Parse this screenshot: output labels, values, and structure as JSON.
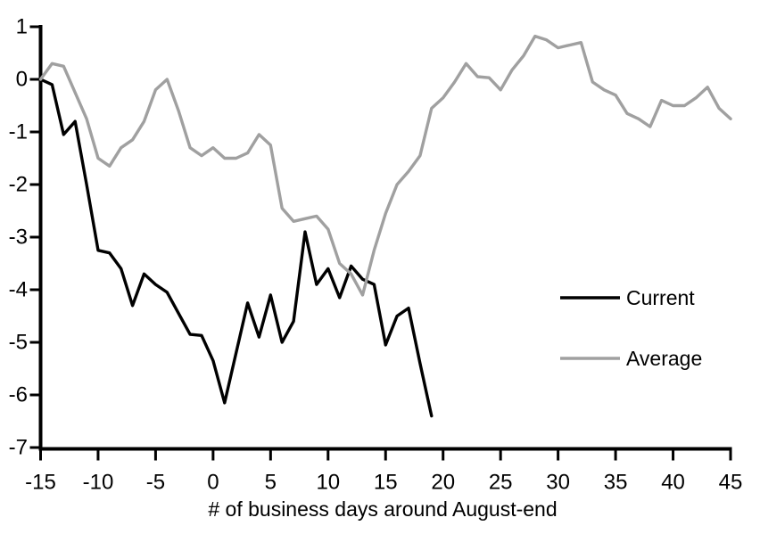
{
  "chart_data": {
    "type": "line",
    "title": "",
    "xlabel": "# of business days around August-end",
    "ylabel": "",
    "xlim": [
      -15,
      45
    ],
    "ylim": [
      -7,
      1
    ],
    "x_ticks": [
      -15,
      -10,
      -5,
      0,
      5,
      10,
      15,
      20,
      25,
      30,
      35,
      40,
      45
    ],
    "y_ticks": [
      1,
      0,
      -1,
      -2,
      -3,
      -4,
      -5,
      -6,
      -7
    ],
    "grid": false,
    "legend_position": "middle-right",
    "background_color": "#ffffff",
    "axis_color": "#000000",
    "series": [
      {
        "name": "Current",
        "color": "#000000",
        "x_start": -15,
        "x_step": 1,
        "values": [
          0.0,
          -0.1,
          -1.05,
          -0.8,
          -2.0,
          -3.25,
          -3.3,
          -3.6,
          -4.3,
          -3.7,
          -3.9,
          -4.05,
          -4.45,
          -4.85,
          -4.87,
          -5.35,
          -6.15,
          -5.2,
          -4.25,
          -4.9,
          -4.1,
          -5.0,
          -4.6,
          -2.9,
          -3.9,
          -3.6,
          -4.15,
          -3.55,
          -3.8,
          -3.9,
          -5.05,
          -4.5,
          -4.35,
          -5.4,
          -6.4
        ]
      },
      {
        "name": "Average",
        "color": "#a0a0a0",
        "x_start": -15,
        "x_step": 1,
        "values": [
          0.0,
          0.3,
          0.25,
          -0.25,
          -0.75,
          -1.5,
          -1.65,
          -1.3,
          -1.15,
          -0.8,
          -0.2,
          0.0,
          -0.6,
          -1.3,
          -1.45,
          -1.3,
          -1.5,
          -1.5,
          -1.4,
          -1.05,
          -1.25,
          -2.45,
          -2.7,
          -2.65,
          -2.6,
          -2.85,
          -3.5,
          -3.7,
          -4.1,
          -3.25,
          -2.55,
          -2.0,
          -1.75,
          -1.45,
          -0.55,
          -0.35,
          -0.05,
          0.3,
          0.05,
          0.03,
          -0.2,
          0.18,
          0.45,
          0.82,
          0.75,
          0.6,
          0.65,
          0.7,
          -0.05,
          -0.2,
          -0.3,
          -0.65,
          -0.75,
          -0.9,
          -0.4,
          -0.5,
          -0.5,
          -0.35,
          -0.15,
          -0.55,
          -0.75
        ]
      }
    ]
  }
}
